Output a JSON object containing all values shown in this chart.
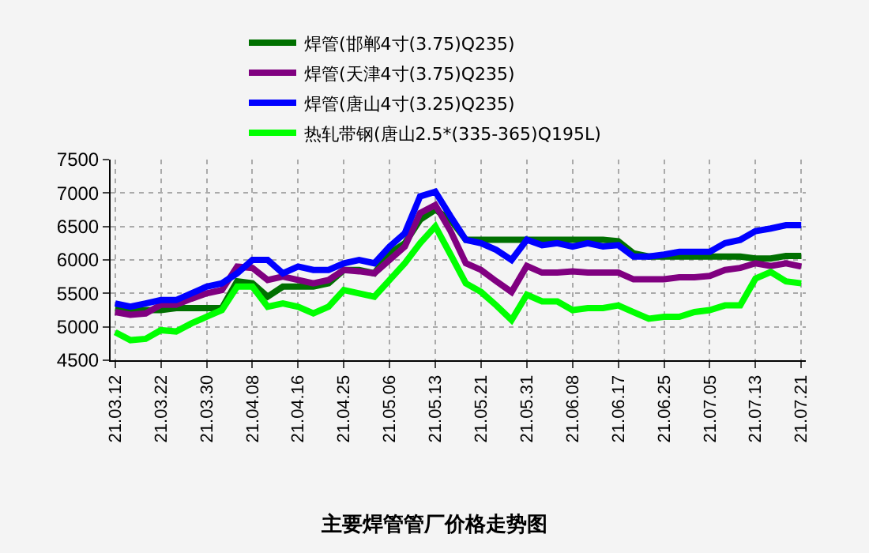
{
  "chart_data": {
    "type": "line",
    "title": "主要焊管管厂价格走势图",
    "categories": [
      "21.03.12",
      null,
      null,
      "21.03.22",
      null,
      null,
      "21.03.30",
      null,
      null,
      "21.04.08",
      null,
      null,
      "21.04.16",
      null,
      null,
      "21.04.25",
      null,
      null,
      "21.05.06",
      null,
      null,
      "21.05.13",
      null,
      null,
      "21.05.21",
      null,
      null,
      "21.05.31",
      null,
      null,
      "21.06.08",
      null,
      null,
      "21.06.17",
      null,
      null,
      "21.06.25",
      null,
      null,
      "21.07.05",
      null,
      null,
      "21.07.13",
      null,
      null,
      "21.07.21"
    ],
    "series": [
      {
        "name": "焊管(邯郸4寸(3.75)Q235)",
        "color": "#007000",
        "values": [
          5280,
          5250,
          5250,
          5250,
          5280,
          5280,
          5280,
          5280,
          5680,
          5650,
          5450,
          5600,
          5600,
          5600,
          5650,
          5850,
          5850,
          5800,
          6100,
          6250,
          6600,
          6750,
          6600,
          6300,
          6300,
          6300,
          6300,
          6300,
          6300,
          6300,
          6300,
          6300,
          6300,
          6280,
          6100,
          6050,
          6050,
          6050,
          6050,
          6050,
          6050,
          6050,
          6020,
          6020,
          6060,
          6060
        ]
      },
      {
        "name": "焊管(天津4寸(3.75)Q235)",
        "color": "#800080",
        "values": [
          5220,
          5180,
          5200,
          5330,
          5330,
          5420,
          5500,
          5550,
          5900,
          5880,
          5700,
          5750,
          5700,
          5650,
          5700,
          5850,
          5830,
          5800,
          6000,
          6200,
          6700,
          6820,
          6430,
          5950,
          5850,
          5680,
          5520,
          5910,
          5810,
          5810,
          5830,
          5810,
          5810,
          5810,
          5710,
          5710,
          5710,
          5740,
          5740,
          5760,
          5850,
          5880,
          5950,
          5910,
          5950,
          5900
        ]
      },
      {
        "name": "焊管(唐山4寸(3.25)Q235)",
        "color": "#0000ff",
        "values": [
          5350,
          5300,
          5350,
          5400,
          5400,
          5500,
          5600,
          5650,
          5800,
          6000,
          6000,
          5800,
          5900,
          5850,
          5850,
          5950,
          6000,
          5950,
          6200,
          6400,
          6950,
          7020,
          6650,
          6300,
          6250,
          6150,
          6000,
          6300,
          6220,
          6250,
          6200,
          6250,
          6200,
          6220,
          6050,
          6050,
          6080,
          6120,
          6120,
          6120,
          6250,
          6300,
          6430,
          6470,
          6520,
          6520
        ]
      },
      {
        "name": "热轧带钢(唐山2.5*(335-365)Q195L)",
        "color": "#00ff00",
        "values": [
          4920,
          4800,
          4820,
          4950,
          4930,
          5050,
          5150,
          5250,
          5600,
          5600,
          5300,
          5350,
          5300,
          5200,
          5300,
          5550,
          5500,
          5450,
          5700,
          5950,
          6250,
          6500,
          6080,
          5650,
          5520,
          5320,
          5100,
          5480,
          5380,
          5380,
          5250,
          5280,
          5280,
          5320,
          5220,
          5120,
          5150,
          5150,
          5220,
          5250,
          5320,
          5320,
          5720,
          5820,
          5680,
          5650
        ]
      }
    ],
    "ylim": [
      4500,
      7500
    ],
    "yticks": [
      4500,
      5000,
      5500,
      6000,
      6500,
      7000,
      7500
    ],
    "grid": true,
    "legend": "top",
    "line_style": "solid",
    "marker": "none"
  }
}
